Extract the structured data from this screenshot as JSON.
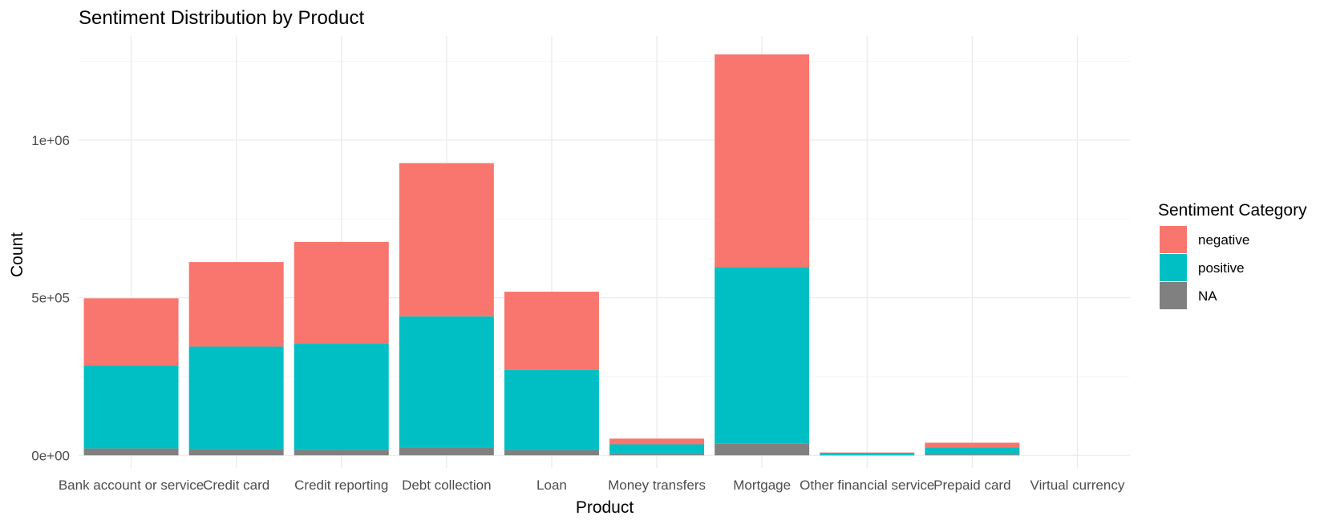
{
  "chart_data": {
    "type": "bar",
    "stacked": true,
    "title": "Sentiment Distribution by Product",
    "xlabel": "Product",
    "ylabel": "Count",
    "categories": [
      "Bank account or service",
      "Credit card",
      "Credit reporting",
      "Debt collection",
      "Loan",
      "Money transfers",
      "Mortgage",
      "Other financial service",
      "Prepaid card",
      "Virtual currency"
    ],
    "series": [
      {
        "name": "NA",
        "color": "#808080",
        "values": [
          22000,
          20000,
          17000,
          25000,
          16000,
          5000,
          37000,
          1000,
          3000,
          0
        ]
      },
      {
        "name": "positive",
        "color": "#00BFC4",
        "values": [
          262000,
          325000,
          338000,
          416000,
          255000,
          30000,
          560000,
          6000,
          22000,
          0
        ]
      },
      {
        "name": "negative",
        "color": "#F8766D",
        "values": [
          214000,
          268000,
          322000,
          486000,
          248000,
          18000,
          675000,
          2000,
          15000,
          0
        ]
      }
    ],
    "ylim": [
      -40000,
      1330000
    ],
    "yticks": [
      0,
      500000,
      1000000
    ],
    "ytick_labels": [
      "0e+00",
      "5e+05",
      "1e+06"
    ],
    "grid": true,
    "legend": {
      "title": "Sentiment Category",
      "position": "right",
      "entries": [
        {
          "label": "negative",
          "color": "#F8766D"
        },
        {
          "label": "positive",
          "color": "#00BFC4"
        },
        {
          "label": "NA",
          "color": "#808080"
        }
      ]
    }
  }
}
